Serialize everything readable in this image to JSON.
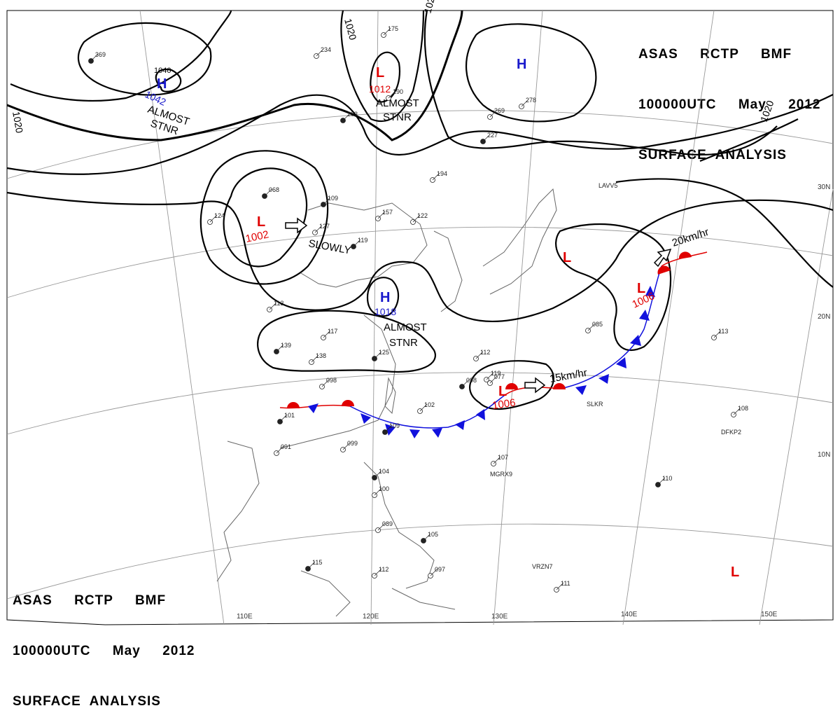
{
  "header": {
    "line1": "ASAS     RCTP     BMF",
    "line2": "100000UTC     May     2012",
    "line3": "SURFACE  ANALYSIS"
  },
  "colors": {
    "isobar": "#000000",
    "high": "#1a1acc",
    "low": "#e00000",
    "warm_front": "#e00000",
    "cold_front": "#1111dd",
    "grid": "#888888",
    "coast": "#555555"
  },
  "isobar_labels": {
    "nw": "1020",
    "n1": "1020",
    "n2": "1020",
    "ne": "1020"
  },
  "pressure_centers": [
    {
      "id": "high-nw",
      "symbol": "H",
      "value_a": "1040",
      "value_b": "1042",
      "motion": "ALMOST\nSTNR"
    },
    {
      "id": "low-north",
      "symbol": "L",
      "value": "1012",
      "motion": "ALMOST\nSTNR"
    },
    {
      "id": "high-ne",
      "symbol": "H"
    },
    {
      "id": "low-west",
      "symbol": "L",
      "value": "1002",
      "motion": "SLOWLY"
    },
    {
      "id": "high-center",
      "symbol": "H",
      "value": "1018",
      "motion": "ALMOST\nSTNR"
    },
    {
      "id": "low-east-a",
      "symbol": "L"
    },
    {
      "id": "low-east-b",
      "symbol": "L",
      "value": "1006",
      "motion": "20km/hr"
    },
    {
      "id": "low-south",
      "symbol": "L",
      "value": "1006",
      "motion": "15km/hr"
    },
    {
      "id": "low-se",
      "symbol": "L"
    }
  ],
  "grid_labels": {
    "lon": [
      "110E",
      "120E",
      "130E",
      "140E",
      "150E"
    ],
    "lat": [
      "30N",
      "20N",
      "10N"
    ]
  },
  "ships": [
    "LAVV5",
    "SLKR",
    "DFKP2",
    "MGRX9",
    "VRZN7"
  ],
  "station_samples": [
    "369",
    "234",
    "175",
    "203",
    "190",
    "122",
    "109",
    "157",
    "194",
    "227",
    "269",
    "278",
    "068",
    "124",
    "127",
    "119",
    "113",
    "117",
    "139",
    "138",
    "098",
    "125",
    "112",
    "119",
    "098",
    "077",
    "085",
    "101",
    "091",
    "099",
    "109",
    "102",
    "107",
    "104",
    "100",
    "089",
    "105",
    "097",
    "112",
    "110",
    "113",
    "108",
    "115",
    "111"
  ]
}
